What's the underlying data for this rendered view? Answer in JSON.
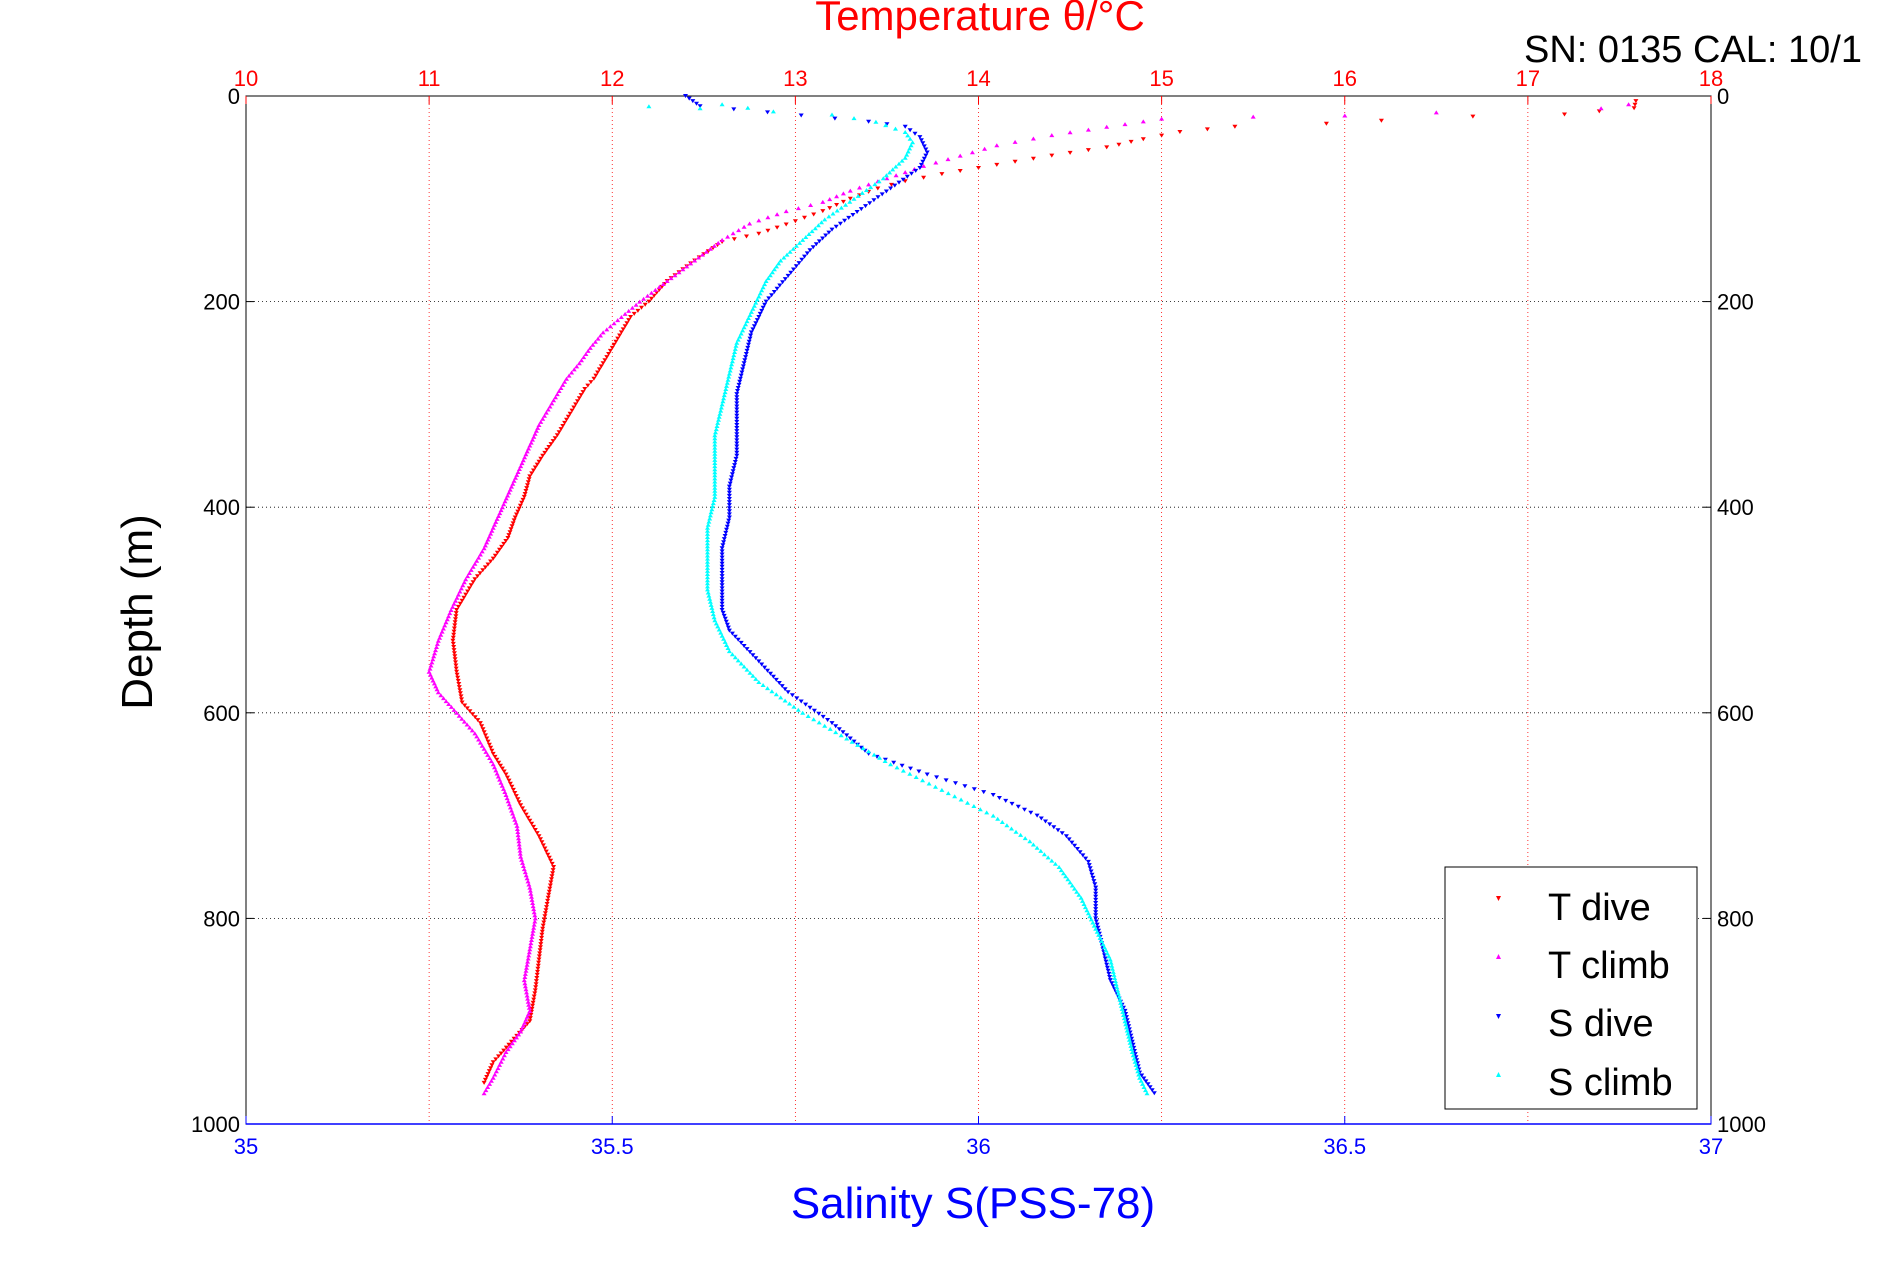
{
  "chart_data": {
    "type": "scatter",
    "title": "Temperature θ/°C",
    "serial_label": "SN: 0135  CAL: 10/1",
    "ylabel": "Depth (m)",
    "xlabel_bottom": "Salinity S(PSS-78)",
    "y_axis": {
      "min": 0,
      "max": 1000,
      "reversed": true,
      "ticks": [
        0,
        200,
        400,
        600,
        800,
        1000
      ]
    },
    "temperature_axis": {
      "min": 10,
      "max": 18,
      "ticks": [
        10,
        11,
        12,
        13,
        14,
        15,
        16,
        17,
        18
      ],
      "color": "#ff0000"
    },
    "salinity_axis": {
      "min": 35,
      "max": 37,
      "ticks": [
        "35",
        "35.5",
        "36",
        "36.5",
        "37"
      ],
      "tick_values": [
        35,
        35.5,
        36,
        36.5,
        37
      ],
      "color": "#0000ff"
    },
    "grid": true,
    "legend_position": "bottom-right",
    "series": [
      {
        "name": "T dive",
        "axis": "temperature",
        "marker": "triangle-down",
        "color": "#ff0000",
        "points": [
          [
            17.59,
            5
          ],
          [
            17.58,
            12
          ],
          [
            17.2,
            18
          ],
          [
            16.7,
            20
          ],
          [
            16.2,
            24
          ],
          [
            15.9,
            27
          ],
          [
            15.4,
            30
          ],
          [
            15.1,
            35
          ],
          [
            14.9,
            42
          ],
          [
            14.7,
            50
          ],
          [
            14.4,
            58
          ],
          [
            14.2,
            64
          ],
          [
            14.0,
            70
          ],
          [
            13.8,
            76
          ],
          [
            13.6,
            83
          ],
          [
            13.45,
            90
          ],
          [
            13.3,
            100
          ],
          [
            13.15,
            112
          ],
          [
            12.95,
            125
          ],
          [
            12.8,
            134
          ],
          [
            12.6,
            142
          ],
          [
            12.45,
            160
          ],
          [
            12.3,
            180
          ],
          [
            12.2,
            200
          ],
          [
            12.1,
            215
          ],
          [
            12.05,
            230
          ],
          [
            12.0,
            245
          ],
          [
            11.95,
            260
          ],
          [
            11.9,
            275
          ],
          [
            11.85,
            285
          ],
          [
            11.8,
            300
          ],
          [
            11.75,
            315
          ],
          [
            11.7,
            330
          ],
          [
            11.62,
            350
          ],
          [
            11.55,
            370
          ],
          [
            11.52,
            390
          ],
          [
            11.47,
            410
          ],
          [
            11.43,
            430
          ],
          [
            11.35,
            450
          ],
          [
            11.25,
            470
          ],
          [
            11.15,
            500
          ],
          [
            11.13,
            530
          ],
          [
            11.15,
            560
          ],
          [
            11.18,
            590
          ],
          [
            11.28,
            610
          ],
          [
            11.35,
            640
          ],
          [
            11.42,
            660
          ],
          [
            11.5,
            690
          ],
          [
            11.6,
            720
          ],
          [
            11.68,
            750
          ],
          [
            11.65,
            780
          ],
          [
            11.62,
            810
          ],
          [
            11.6,
            840
          ],
          [
            11.58,
            870
          ],
          [
            11.55,
            900
          ],
          [
            11.45,
            920
          ],
          [
            11.35,
            940
          ],
          [
            11.3,
            960
          ]
        ]
      },
      {
        "name": "T climb",
        "axis": "temperature",
        "marker": "triangle-up",
        "color": "#ff00ff",
        "points": [
          [
            17.55,
            8
          ],
          [
            17.4,
            12
          ],
          [
            16.5,
            16
          ],
          [
            16.0,
            19
          ],
          [
            15.5,
            20
          ],
          [
            15.0,
            22
          ],
          [
            14.7,
            30
          ],
          [
            14.4,
            38
          ],
          [
            14.1,
            48
          ],
          [
            13.9,
            58
          ],
          [
            13.7,
            68
          ],
          [
            13.5,
            80
          ],
          [
            13.3,
            92
          ],
          [
            13.15,
            103
          ],
          [
            12.95,
            112
          ],
          [
            12.75,
            124
          ],
          [
            12.6,
            140
          ],
          [
            12.45,
            160
          ],
          [
            12.3,
            180
          ],
          [
            12.15,
            200
          ],
          [
            12.05,
            215
          ],
          [
            11.95,
            230
          ],
          [
            11.88,
            245
          ],
          [
            11.82,
            260
          ],
          [
            11.75,
            275
          ],
          [
            11.7,
            290
          ],
          [
            11.65,
            305
          ],
          [
            11.6,
            320
          ],
          [
            11.55,
            340
          ],
          [
            11.5,
            360
          ],
          [
            11.45,
            380
          ],
          [
            11.4,
            400
          ],
          [
            11.35,
            420
          ],
          [
            11.3,
            440
          ],
          [
            11.2,
            470
          ],
          [
            11.12,
            500
          ],
          [
            11.05,
            530
          ],
          [
            11.0,
            560
          ],
          [
            11.05,
            580
          ],
          [
            11.15,
            600
          ],
          [
            11.25,
            620
          ],
          [
            11.35,
            650
          ],
          [
            11.42,
            680
          ],
          [
            11.48,
            710
          ],
          [
            11.5,
            740
          ],
          [
            11.55,
            770
          ],
          [
            11.58,
            800
          ],
          [
            11.55,
            830
          ],
          [
            11.52,
            860
          ],
          [
            11.55,
            890
          ],
          [
            11.5,
            910
          ],
          [
            11.42,
            930
          ],
          [
            11.35,
            955
          ],
          [
            11.3,
            970
          ]
        ]
      },
      {
        "name": "S dive",
        "axis": "salinity",
        "marker": "triangle-down",
        "color": "#0000ff",
        "points": [
          [
            35.6,
            0
          ],
          [
            35.61,
            5
          ],
          [
            35.62,
            10
          ],
          [
            35.85,
            25
          ],
          [
            35.9,
            30
          ],
          [
            35.92,
            40
          ],
          [
            35.93,
            55
          ],
          [
            35.92,
            70
          ],
          [
            35.88,
            90
          ],
          [
            35.84,
            110
          ],
          [
            35.8,
            130
          ],
          [
            35.77,
            150
          ],
          [
            35.74,
            175
          ],
          [
            35.71,
            200
          ],
          [
            35.69,
            230
          ],
          [
            35.68,
            260
          ],
          [
            35.67,
            290
          ],
          [
            35.67,
            320
          ],
          [
            35.67,
            350
          ],
          [
            35.66,
            380
          ],
          [
            35.66,
            410
          ],
          [
            35.65,
            440
          ],
          [
            35.65,
            470
          ],
          [
            35.65,
            500
          ],
          [
            35.66,
            520
          ],
          [
            35.7,
            550
          ],
          [
            35.74,
            580
          ],
          [
            35.8,
            610
          ],
          [
            35.85,
            640
          ],
          [
            35.93,
            660
          ],
          [
            36.02,
            680
          ],
          [
            36.08,
            700
          ],
          [
            36.12,
            720
          ],
          [
            36.15,
            745
          ],
          [
            36.16,
            770
          ],
          [
            36.16,
            800
          ],
          [
            36.17,
            830
          ],
          [
            36.18,
            860
          ],
          [
            36.2,
            890
          ],
          [
            36.21,
            920
          ],
          [
            36.22,
            950
          ],
          [
            36.24,
            970
          ]
        ]
      },
      {
        "name": "S climb",
        "axis": "salinity",
        "marker": "triangle-up",
        "color": "#00ffff",
        "points": [
          [
            35.55,
            10
          ],
          [
            35.62,
            12
          ],
          [
            35.65,
            8
          ],
          [
            35.72,
            15
          ],
          [
            35.8,
            18
          ],
          [
            35.86,
            25
          ],
          [
            35.9,
            35
          ],
          [
            35.91,
            45
          ],
          [
            35.9,
            60
          ],
          [
            35.87,
            80
          ],
          [
            35.83,
            100
          ],
          [
            35.79,
            120
          ],
          [
            35.76,
            140
          ],
          [
            35.73,
            160
          ],
          [
            35.71,
            180
          ],
          [
            35.69,
            210
          ],
          [
            35.67,
            240
          ],
          [
            35.66,
            270
          ],
          [
            35.65,
            300
          ],
          [
            35.64,
            330
          ],
          [
            35.64,
            360
          ],
          [
            35.64,
            390
          ],
          [
            35.63,
            420
          ],
          [
            35.63,
            450
          ],
          [
            35.63,
            480
          ],
          [
            35.64,
            510
          ],
          [
            35.66,
            540
          ],
          [
            35.7,
            570
          ],
          [
            35.76,
            600
          ],
          [
            35.82,
            625
          ],
          [
            35.88,
            650
          ],
          [
            35.95,
            675
          ],
          [
            36.02,
            700
          ],
          [
            36.07,
            725
          ],
          [
            36.11,
            750
          ],
          [
            36.14,
            780
          ],
          [
            36.16,
            810
          ],
          [
            36.18,
            840
          ],
          [
            36.19,
            870
          ],
          [
            36.2,
            900
          ],
          [
            36.21,
            930
          ],
          [
            36.22,
            955
          ],
          [
            36.23,
            970
          ]
        ]
      }
    ]
  }
}
